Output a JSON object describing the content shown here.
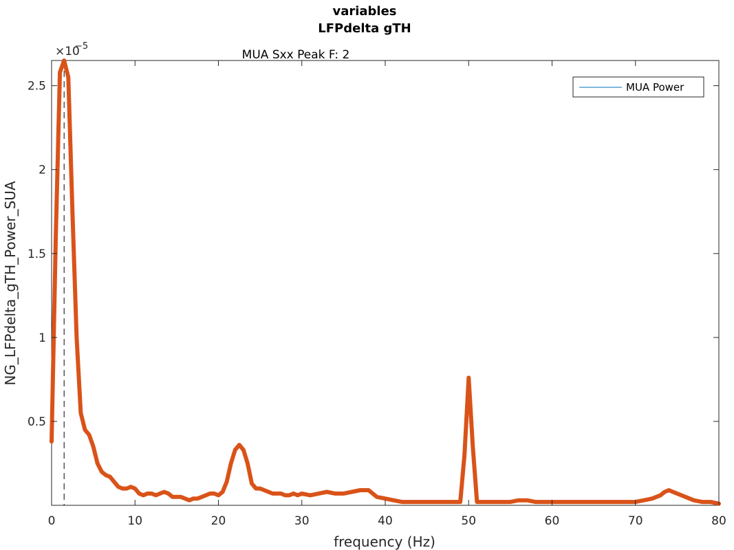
{
  "figure": {
    "title_line1": "variables",
    "title_line2": "LFPdelta gTH",
    "axes_title": "MUA Sxx Peak F: 2",
    "exponent_base": "×10",
    "exponent_power": "−5"
  },
  "chart_data": {
    "type": "line",
    "title": "MUA Sxx Peak F: 2",
    "xlabel": "frequency (Hz)",
    "ylabel": "NG_LFPdelta_gTH_Power_SUA",
    "xlim": [
      0,
      80
    ],
    "ylim": [
      0,
      2.65
    ],
    "y_scale_note": "×10^-5",
    "xticks": [
      0,
      10,
      20,
      30,
      40,
      50,
      60,
      70,
      80
    ],
    "xtick_labels": [
      "0",
      "10",
      "20",
      "30",
      "40",
      "50",
      "60",
      "70",
      "80"
    ],
    "yticks": [
      0.5,
      1,
      1.5,
      2,
      2.5
    ],
    "ytick_labels": [
      "0.5",
      "1",
      "1.5",
      "2",
      "2.5"
    ],
    "grid": false,
    "legend": {
      "entries": [
        "MUA Power"
      ],
      "location": "top-right"
    },
    "peak_marker": {
      "x": 1.5,
      "style": "dashed"
    },
    "series": [
      {
        "name": "MUA Power",
        "color": "#D95319",
        "x": [
          0,
          0.5,
          1,
          1.5,
          2,
          2.5,
          3,
          3.5,
          4,
          4.5,
          5,
          5.5,
          6,
          6.5,
          7,
          7.5,
          8,
          8.5,
          9,
          9.5,
          10,
          10.5,
          11,
          11.5,
          12,
          12.5,
          13,
          13.5,
          14,
          14.5,
          15,
          15.5,
          16,
          16.5,
          17,
          17.5,
          18,
          18.5,
          19,
          19.5,
          20,
          20.5,
          21,
          21.5,
          22,
          22.5,
          23,
          23.5,
          24,
          24.5,
          25,
          25.5,
          26,
          26.5,
          27,
          27.5,
          28,
          28.5,
          29,
          29.5,
          30,
          31,
          32,
          33,
          34,
          35,
          36,
          37,
          38,
          39,
          40,
          41,
          42,
          43,
          44,
          45,
          46,
          47,
          48,
          48.5,
          49,
          49.5,
          50,
          50.5,
          51,
          51.5,
          52,
          53,
          54,
          55,
          56,
          57,
          58,
          59,
          60,
          61,
          62,
          63,
          64,
          65,
          66,
          67,
          68,
          69,
          70,
          71,
          72,
          73,
          73.5,
          74,
          74.5,
          75,
          75.5,
          76,
          77,
          78,
          79,
          80
        ],
        "y": [
          0.38,
          1.6,
          2.58,
          2.65,
          2.55,
          1.75,
          1.0,
          0.55,
          0.45,
          0.42,
          0.35,
          0.25,
          0.2,
          0.18,
          0.17,
          0.14,
          0.11,
          0.1,
          0.1,
          0.11,
          0.1,
          0.07,
          0.06,
          0.07,
          0.07,
          0.06,
          0.07,
          0.08,
          0.07,
          0.05,
          0.05,
          0.05,
          0.04,
          0.03,
          0.04,
          0.04,
          0.05,
          0.06,
          0.07,
          0.07,
          0.06,
          0.08,
          0.14,
          0.25,
          0.33,
          0.36,
          0.33,
          0.25,
          0.13,
          0.1,
          0.1,
          0.09,
          0.08,
          0.07,
          0.07,
          0.07,
          0.06,
          0.06,
          0.07,
          0.06,
          0.07,
          0.06,
          0.07,
          0.08,
          0.07,
          0.07,
          0.08,
          0.09,
          0.09,
          0.05,
          0.04,
          0.03,
          0.02,
          0.02,
          0.02,
          0.02,
          0.02,
          0.02,
          0.02,
          0.02,
          0.02,
          0.3,
          0.76,
          0.35,
          0.02,
          0.02,
          0.02,
          0.02,
          0.02,
          0.02,
          0.03,
          0.03,
          0.02,
          0.02,
          0.02,
          0.02,
          0.02,
          0.02,
          0.02,
          0.02,
          0.02,
          0.02,
          0.02,
          0.02,
          0.02,
          0.03,
          0.04,
          0.06,
          0.08,
          0.09,
          0.08,
          0.07,
          0.06,
          0.05,
          0.03,
          0.02,
          0.02,
          0.01
        ]
      }
    ]
  }
}
